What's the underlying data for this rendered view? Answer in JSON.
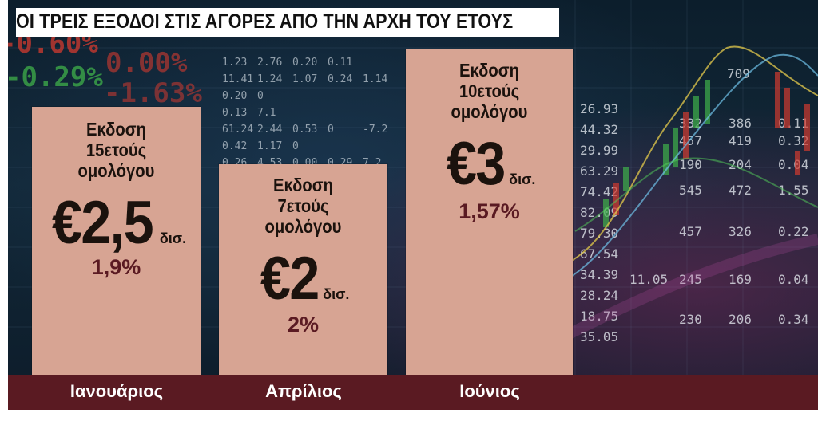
{
  "title": "ΟΙ ΤΡΕΙΣ ΕΞΟΔΟΙ ΣΤΙΣ ΑΓΟΡΕΣ ΑΠΟ ΤΗΝ ΑΡΧΗ ΤΟΥ ΕΤΟΥΣ",
  "colors": {
    "bar_fill": "#d7a493",
    "rate_text": "#5a1a22",
    "month_band": "#5a1a22",
    "title_bg": "#ffffff"
  },
  "chart_data": {
    "type": "bar",
    "title": "ΟΙ ΤΡΕΙΣ ΕΞΟΔΟΙ ΣΤΙΣ ΑΓΟΡΕΣ ΑΠΟ ΤΗΝ ΑΡΧΗ ΤΟΥ ΕΤΟΥΣ",
    "categories": [
      "Ιανουάριος",
      "Απρίλιος",
      "Ιούνιος"
    ],
    "values": [
      2.5,
      2,
      3
    ],
    "unit": "δισ.",
    "bars": [
      {
        "month": "Ιανουάριος",
        "issue_lines": [
          "Εκδοση",
          "15ετούς",
          "ομολόγου"
        ],
        "amount_text": "€2,5",
        "unit": "δισ.",
        "rate": "1,9%",
        "value": 2.5
      },
      {
        "month": "Απρίλιος",
        "issue_lines": [
          "Εκδοση",
          "7ετούς",
          "ομολόγου"
        ],
        "amount_text": "€2",
        "unit": "δισ.",
        "rate": "2%",
        "value": 2
      },
      {
        "month": "Ιούνιος",
        "issue_lines": [
          "Εκδοση",
          "10ετούς",
          "ομολόγου"
        ],
        "amount_text": "€3",
        "unit": "δισ.",
        "rate": "1,57%",
        "value": 3
      }
    ]
  },
  "background_ticker": {
    "left_values": [
      "-0.60%",
      "-0.29%",
      "0.00%",
      "-1.63%"
    ],
    "middle_rows": [
      [
        "1.23",
        "2.76",
        "0.20",
        "0.11"
      ],
      [
        "11.41",
        "1.24",
        "1.07",
        "0.24",
        "1.14"
      ],
      [
        "0.20",
        "0"
      ],
      [
        "0.13",
        "7.1"
      ],
      [
        "61.24",
        "2.44",
        "0.53",
        "0",
        "-7.2"
      ],
      [
        "0.42",
        "1.17",
        "0"
      ],
      [
        "0.26",
        "4.53",
        "0.00",
        "0.29",
        "7.2"
      ]
    ],
    "right_col1": [
      "26.93",
      "44.32",
      "29.99",
      "63.29",
      "74.42",
      "82.09",
      "79.30",
      "67.54",
      "34.39",
      "28.24",
      "18.75",
      "35.05"
    ],
    "right_rows": [
      [
        "709"
      ],
      [
        "332",
        "386",
        "0.11"
      ],
      [
        "457",
        "419",
        "0.32"
      ],
      [
        "190",
        "204",
        "0.04"
      ],
      [
        "545",
        "472",
        "1.55"
      ],
      [
        "457",
        "326",
        "0.22"
      ],
      [
        "11.05",
        "245",
        "169",
        "0.04"
      ],
      [
        "230",
        "206",
        "0.34"
      ]
    ]
  }
}
